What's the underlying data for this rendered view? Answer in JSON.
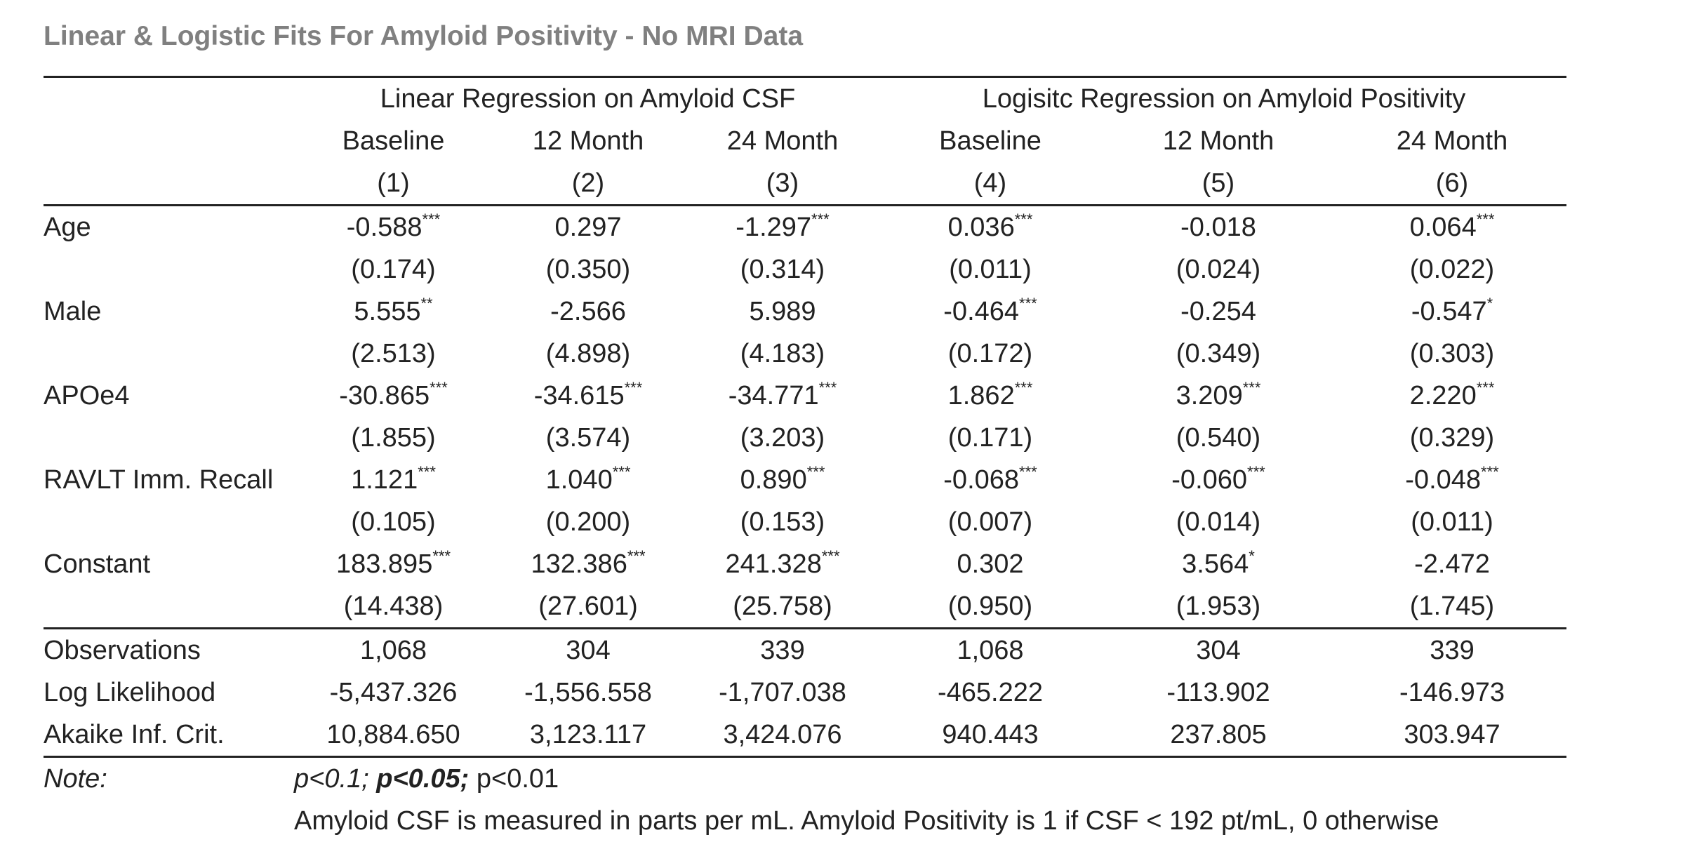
{
  "title": "Linear & Logistic Fits For Amyloid Positivity - No MRI Data",
  "groups": {
    "linear": "Linear Regression on Amyloid CSF",
    "logistic": "Logisitc Regression on Amyloid Positivity"
  },
  "columns": [
    {
      "period": "Baseline",
      "num": "(1)"
    },
    {
      "period": "12 Month",
      "num": "(2)"
    },
    {
      "period": "24 Month",
      "num": "(3)"
    },
    {
      "period": "Baseline",
      "num": "(4)"
    },
    {
      "period": "12 Month",
      "num": "(5)"
    },
    {
      "period": "24 Month",
      "num": "(6)"
    }
  ],
  "rows": [
    {
      "label": "Age",
      "coef": [
        {
          "v": "-0.588",
          "s": "***"
        },
        {
          "v": "0.297",
          "s": ""
        },
        {
          "v": "-1.297",
          "s": "***"
        },
        {
          "v": "0.036",
          "s": "***"
        },
        {
          "v": "-0.018",
          "s": ""
        },
        {
          "v": "0.064",
          "s": "***"
        }
      ],
      "se": [
        "(0.174)",
        "(0.350)",
        "(0.314)",
        "(0.011)",
        "(0.024)",
        "(0.022)"
      ]
    },
    {
      "label": "Male",
      "coef": [
        {
          "v": "5.555",
          "s": "**"
        },
        {
          "v": "-2.566",
          "s": ""
        },
        {
          "v": "5.989",
          "s": ""
        },
        {
          "v": "-0.464",
          "s": "***"
        },
        {
          "v": "-0.254",
          "s": ""
        },
        {
          "v": "-0.547",
          "s": "*"
        }
      ],
      "se": [
        "(2.513)",
        "(4.898)",
        "(4.183)",
        "(0.172)",
        "(0.349)",
        "(0.303)"
      ]
    },
    {
      "label": "APOe4",
      "coef": [
        {
          "v": "-30.865",
          "s": "***"
        },
        {
          "v": "-34.615",
          "s": "***"
        },
        {
          "v": "-34.771",
          "s": "***"
        },
        {
          "v": "1.862",
          "s": "***"
        },
        {
          "v": "3.209",
          "s": "***"
        },
        {
          "v": "2.220",
          "s": "***"
        }
      ],
      "se": [
        "(1.855)",
        "(3.574)",
        "(3.203)",
        "(0.171)",
        "(0.540)",
        "(0.329)"
      ]
    },
    {
      "label": "RAVLT Imm. Recall",
      "coef": [
        {
          "v": "1.121",
          "s": "***"
        },
        {
          "v": "1.040",
          "s": "***"
        },
        {
          "v": "0.890",
          "s": "***"
        },
        {
          "v": "-0.068",
          "s": "***"
        },
        {
          "v": "-0.060",
          "s": "***"
        },
        {
          "v": "-0.048",
          "s": "***"
        }
      ],
      "se": [
        "(0.105)",
        "(0.200)",
        "(0.153)",
        "(0.007)",
        "(0.014)",
        "(0.011)"
      ]
    },
    {
      "label": "Constant",
      "coef": [
        {
          "v": "183.895",
          "s": "***"
        },
        {
          "v": "132.386",
          "s": "***"
        },
        {
          "v": "241.328",
          "s": "***"
        },
        {
          "v": "0.302",
          "s": ""
        },
        {
          "v": "3.564",
          "s": "*"
        },
        {
          "v": "-2.472",
          "s": ""
        }
      ],
      "se": [
        "(14.438)",
        "(27.601)",
        "(25.758)",
        "(0.950)",
        "(1.953)",
        "(1.745)"
      ]
    }
  ],
  "stats": [
    {
      "label": "Observations",
      "values": [
        "1,068",
        "304",
        "339",
        "1,068",
        "304",
        "339"
      ]
    },
    {
      "label": "Log Likelihood",
      "values": [
        "-5,437.326",
        "-1,556.558",
        "-1,707.038",
        "-465.222",
        "-113.902",
        "-146.973"
      ]
    },
    {
      "label": "Akaike Inf. Crit.",
      "values": [
        "10,884.650",
        "3,123.117",
        "3,424.076",
        "940.443",
        "237.805",
        "303.947"
      ]
    }
  ],
  "note": {
    "label": "Note:",
    "p1": "p<0.1;",
    "p2": "p<0.05;",
    "p3": "p<0.01",
    "text": "Amyloid CSF is measured in parts per mL. Amyloid Positivity is 1 if CSF < 192 pt/mL, 0 otherwise"
  }
}
